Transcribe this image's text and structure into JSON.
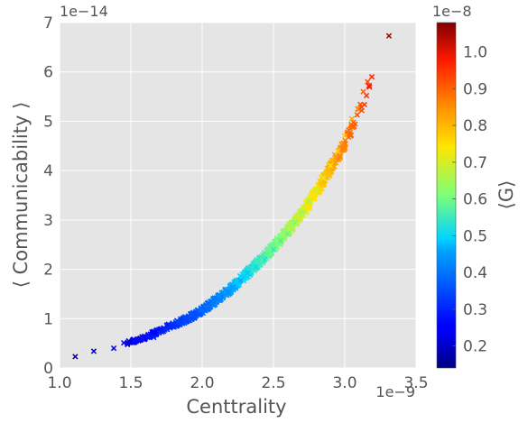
{
  "chart_data": {
    "type": "scatter",
    "marker": "x",
    "title": "",
    "xlabel": "Centtrality",
    "ylabel": "⟨ Communicability ⟩",
    "x_offset_label": "1e−9",
    "y_offset_label": "1e−14",
    "xlim": [
      1.0,
      3.5
    ],
    "ylim": [
      0,
      7
    ],
    "x_ticks": [
      "1.0",
      "1.5",
      "2.0",
      "2.5",
      "3.0",
      "3.5"
    ],
    "x_tick_values": [
      1.0,
      1.5,
      2.0,
      2.5,
      3.0,
      3.5
    ],
    "y_ticks": [
      "0",
      "1",
      "2",
      "3",
      "4",
      "5",
      "6",
      "7"
    ],
    "y_tick_values": [
      0,
      1,
      2,
      3,
      4,
      5,
      6,
      7
    ],
    "grid": true,
    "background": "#e5e5e5",
    "grid_color": "#ffffff",
    "colormap": "jet",
    "colorbar": {
      "label": "⟨G⟩",
      "offset_label": "1e−8",
      "range": [
        0.14,
        1.08
      ],
      "ticks": [
        "0.2",
        "0.3",
        "0.4",
        "0.5",
        "0.6",
        "0.7",
        "0.8",
        "0.9",
        "1.0"
      ],
      "tick_values": [
        0.2,
        0.3,
        0.4,
        0.5,
        0.6,
        0.7,
        0.8,
        0.9,
        1.0
      ]
    },
    "trend": {
      "x": [
        1.1,
        1.24,
        1.38,
        1.5,
        1.6,
        1.7,
        1.8,
        1.9,
        2.0,
        2.1,
        2.2,
        2.3,
        2.4,
        2.5,
        2.6,
        2.7,
        2.8,
        2.9,
        3.0,
        3.1,
        3.2
      ],
      "y": [
        0.22,
        0.33,
        0.42,
        0.53,
        0.62,
        0.75,
        0.88,
        1.0,
        1.17,
        1.38,
        1.6,
        1.87,
        2.15,
        2.45,
        2.78,
        3.15,
        3.55,
        4.05,
        4.55,
        5.2,
        5.8
      ]
    },
    "points": [
      [
        1.11,
        0.23,
        0.16
      ],
      [
        1.24,
        0.34,
        0.2
      ],
      [
        1.38,
        0.4,
        0.22
      ],
      [
        1.45,
        0.51,
        0.25
      ],
      [
        1.52,
        0.55,
        0.27
      ],
      [
        1.55,
        0.58,
        0.27
      ],
      [
        1.58,
        0.6,
        0.28
      ],
      [
        1.62,
        0.64,
        0.29
      ],
      [
        1.66,
        0.62,
        0.29
      ],
      [
        1.7,
        0.72,
        0.3
      ],
      [
        1.75,
        0.79,
        0.31
      ],
      [
        1.8,
        0.85,
        0.32
      ],
      [
        1.84,
        0.9,
        0.33
      ],
      [
        1.88,
        0.96,
        0.34
      ],
      [
        1.92,
        1.0,
        0.35
      ],
      [
        1.97,
        1.08,
        0.36
      ],
      [
        2.02,
        1.17,
        0.38
      ],
      [
        2.07,
        1.3,
        0.4
      ],
      [
        2.12,
        1.42,
        0.42
      ],
      [
        2.18,
        1.53,
        0.43
      ],
      [
        2.22,
        1.63,
        0.45
      ],
      [
        2.27,
        1.77,
        0.46
      ],
      [
        2.32,
        1.93,
        0.48
      ],
      [
        2.38,
        2.05,
        0.5
      ],
      [
        2.44,
        2.2,
        0.52
      ],
      [
        2.5,
        2.4,
        0.54
      ],
      [
        2.55,
        2.58,
        0.56
      ],
      [
        2.6,
        2.72,
        0.58
      ],
      [
        2.65,
        2.95,
        0.6
      ],
      [
        2.7,
        3.15,
        0.62
      ],
      [
        2.75,
        3.38,
        0.65
      ],
      [
        2.8,
        3.6,
        0.68
      ],
      [
        2.85,
        3.85,
        0.7
      ],
      [
        2.9,
        4.1,
        0.73
      ],
      [
        2.95,
        4.4,
        0.76
      ],
      [
        3.0,
        4.7,
        0.79
      ],
      [
        3.05,
        5.05,
        0.82
      ],
      [
        3.09,
        5.25,
        0.85
      ],
      [
        3.13,
        5.6,
        0.9
      ],
      [
        3.16,
        5.8,
        0.93
      ],
      [
        3.19,
        5.9,
        0.96
      ],
      [
        3.31,
        6.73,
        1.06
      ]
    ]
  }
}
